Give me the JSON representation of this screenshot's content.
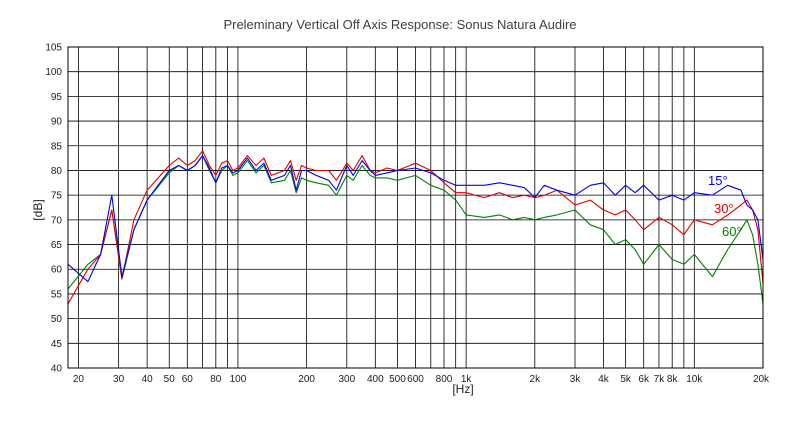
{
  "chart_data": {
    "type": "line",
    "title": "Preleminary Vertical Off Axis Response: Sonus Natura Audire",
    "xlabel": "[Hz]",
    "ylabel": "[dB]",
    "x_scale": "log",
    "xlim": [
      18,
      20000
    ],
    "ylim": [
      40,
      105
    ],
    "grid": true,
    "y_ticks": [
      40,
      45,
      50,
      55,
      60,
      65,
      70,
      75,
      80,
      85,
      90,
      95,
      100,
      105
    ],
    "x_tick_labels": [
      {
        "value": 20,
        "label": "20"
      },
      {
        "value": 30,
        "label": "30"
      },
      {
        "value": 40,
        "label": "40"
      },
      {
        "value": 50,
        "label": "50"
      },
      {
        "value": 60,
        "label": "60"
      },
      {
        "value": 80,
        "label": "80"
      },
      {
        "value": 100,
        "label": "100"
      },
      {
        "value": 200,
        "label": "200"
      },
      {
        "value": 300,
        "label": "300"
      },
      {
        "value": 400,
        "label": "400"
      },
      {
        "value": 500,
        "label": "500"
      },
      {
        "value": 600,
        "label": "600"
      },
      {
        "value": 800,
        "label": "800"
      },
      {
        "value": 1000,
        "label": "1k"
      },
      {
        "value": 2000,
        "label": "2k"
      },
      {
        "value": 3000,
        "label": "3k"
      },
      {
        "value": 4000,
        "label": "4k"
      },
      {
        "value": 5000,
        "label": "5k"
      },
      {
        "value": 6000,
        "label": "6k"
      },
      {
        "value": 7000,
        "label": "7k"
      },
      {
        "value": 8000,
        "label": "8k"
      },
      {
        "value": 10000,
        "label": "10k"
      },
      {
        "value": 20000,
        "label": "20k"
      }
    ],
    "series": [
      {
        "name": "15°",
        "color": "#0000ee",
        "points": [
          [
            18,
            61
          ],
          [
            22,
            57.5
          ],
          [
            25,
            63
          ],
          [
            28,
            75
          ],
          [
            31,
            58.5
          ],
          [
            35,
            68
          ],
          [
            40,
            74
          ],
          [
            50,
            80
          ],
          [
            55,
            81
          ],
          [
            60,
            80
          ],
          [
            65,
            81
          ],
          [
            70,
            83
          ],
          [
            75,
            80.5
          ],
          [
            80,
            77.5
          ],
          [
            85,
            80.5
          ],
          [
            90,
            81
          ],
          [
            95,
            79.5
          ],
          [
            100,
            80
          ],
          [
            110,
            82.5
          ],
          [
            120,
            80
          ],
          [
            130,
            81.5
          ],
          [
            140,
            78
          ],
          [
            160,
            79
          ],
          [
            170,
            81
          ],
          [
            180,
            76
          ],
          [
            190,
            80
          ],
          [
            200,
            80
          ],
          [
            220,
            79
          ],
          [
            250,
            78
          ],
          [
            270,
            76
          ],
          [
            300,
            81
          ],
          [
            320,
            79
          ],
          [
            350,
            82
          ],
          [
            380,
            80
          ],
          [
            400,
            79
          ],
          [
            450,
            79.5
          ],
          [
            500,
            80
          ],
          [
            600,
            80.5
          ],
          [
            700,
            79.5
          ],
          [
            800,
            78
          ],
          [
            900,
            77
          ],
          [
            1000,
            77
          ],
          [
            1200,
            77
          ],
          [
            1400,
            77.5
          ],
          [
            1600,
            77
          ],
          [
            1800,
            76.5
          ],
          [
            2000,
            74.5
          ],
          [
            2200,
            77
          ],
          [
            2500,
            76
          ],
          [
            3000,
            75
          ],
          [
            3500,
            77
          ],
          [
            4000,
            77.5
          ],
          [
            4500,
            75
          ],
          [
            5000,
            77
          ],
          [
            5500,
            75.5
          ],
          [
            6000,
            77
          ],
          [
            7000,
            74
          ],
          [
            8000,
            75
          ],
          [
            9000,
            74
          ],
          [
            10000,
            75.5
          ],
          [
            12000,
            75
          ],
          [
            14000,
            77
          ],
          [
            16000,
            76
          ],
          [
            17000,
            73
          ],
          [
            18000,
            72
          ],
          [
            19000,
            70
          ],
          [
            20000,
            62
          ]
        ]
      },
      {
        "name": "30°",
        "color": "#e00000",
        "points": [
          [
            18,
            53
          ],
          [
            22,
            60
          ],
          [
            25,
            63
          ],
          [
            28,
            72
          ],
          [
            31,
            58
          ],
          [
            35,
            70
          ],
          [
            40,
            76
          ],
          [
            50,
            81
          ],
          [
            55,
            82.5
          ],
          [
            60,
            81
          ],
          [
            65,
            82
          ],
          [
            70,
            84
          ],
          [
            75,
            81
          ],
          [
            80,
            79
          ],
          [
            85,
            81.5
          ],
          [
            90,
            82
          ],
          [
            95,
            80
          ],
          [
            100,
            80.5
          ],
          [
            110,
            83
          ],
          [
            120,
            81
          ],
          [
            130,
            82.5
          ],
          [
            140,
            79
          ],
          [
            160,
            80
          ],
          [
            170,
            82
          ],
          [
            180,
            78
          ],
          [
            190,
            81
          ],
          [
            200,
            80.5
          ],
          [
            220,
            80
          ],
          [
            250,
            80
          ],
          [
            270,
            78
          ],
          [
            300,
            81.5
          ],
          [
            320,
            80
          ],
          [
            350,
            83
          ],
          [
            380,
            80
          ],
          [
            400,
            79.5
          ],
          [
            450,
            80.5
          ],
          [
            500,
            80
          ],
          [
            600,
            81.5
          ],
          [
            700,
            80
          ],
          [
            800,
            77.5
          ],
          [
            900,
            75.5
          ],
          [
            1000,
            75.5
          ],
          [
            1200,
            74.5
          ],
          [
            1400,
            75.5
          ],
          [
            1600,
            74.5
          ],
          [
            1800,
            75
          ],
          [
            2000,
            74.5
          ],
          [
            2200,
            75
          ],
          [
            2500,
            76
          ],
          [
            3000,
            73
          ],
          [
            3500,
            74
          ],
          [
            4000,
            72
          ],
          [
            4500,
            71
          ],
          [
            5000,
            72
          ],
          [
            5500,
            70
          ],
          [
            6000,
            68
          ],
          [
            7000,
            70.5
          ],
          [
            8000,
            69
          ],
          [
            9000,
            67
          ],
          [
            10000,
            70
          ],
          [
            12000,
            69
          ],
          [
            14000,
            71
          ],
          [
            16000,
            73
          ],
          [
            17000,
            74
          ],
          [
            18000,
            72
          ],
          [
            19000,
            68
          ],
          [
            20000,
            57
          ]
        ]
      },
      {
        "name": "60°",
        "color": "#008000",
        "points": [
          [
            18,
            56
          ],
          [
            22,
            61
          ],
          [
            25,
            63
          ],
          [
            28,
            72
          ],
          [
            31,
            58
          ],
          [
            35,
            68
          ],
          [
            40,
            74
          ],
          [
            50,
            79.5
          ],
          [
            55,
            81
          ],
          [
            60,
            80
          ],
          [
            65,
            81
          ],
          [
            70,
            83
          ],
          [
            75,
            80
          ],
          [
            80,
            77.5
          ],
          [
            85,
            80
          ],
          [
            90,
            81
          ],
          [
            95,
            79
          ],
          [
            100,
            79.5
          ],
          [
            110,
            82
          ],
          [
            120,
            79.5
          ],
          [
            130,
            81
          ],
          [
            140,
            77.5
          ],
          [
            160,
            78
          ],
          [
            170,
            80
          ],
          [
            180,
            75.5
          ],
          [
            190,
            78.5
          ],
          [
            200,
            78
          ],
          [
            220,
            77.5
          ],
          [
            250,
            77
          ],
          [
            270,
            75
          ],
          [
            300,
            79
          ],
          [
            320,
            78
          ],
          [
            350,
            81
          ],
          [
            380,
            79
          ],
          [
            400,
            78.5
          ],
          [
            450,
            78.5
          ],
          [
            500,
            78
          ],
          [
            600,
            79
          ],
          [
            700,
            77
          ],
          [
            800,
            76
          ],
          [
            900,
            74
          ],
          [
            1000,
            71
          ],
          [
            1200,
            70.5
          ],
          [
            1400,
            71
          ],
          [
            1600,
            70
          ],
          [
            1800,
            70.5
          ],
          [
            2000,
            70
          ],
          [
            2200,
            70.5
          ],
          [
            2500,
            71
          ],
          [
            3000,
            72
          ],
          [
            3500,
            69
          ],
          [
            4000,
            68
          ],
          [
            4500,
            65
          ],
          [
            5000,
            66
          ],
          [
            5500,
            64
          ],
          [
            6000,
            61
          ],
          [
            7000,
            65
          ],
          [
            8000,
            62
          ],
          [
            9000,
            61
          ],
          [
            10000,
            63
          ],
          [
            12000,
            58.5
          ],
          [
            14000,
            64
          ],
          [
            16000,
            68
          ],
          [
            17000,
            70
          ],
          [
            18000,
            67
          ],
          [
            19000,
            61
          ],
          [
            20000,
            53
          ]
        ]
      }
    ],
    "legend": [
      {
        "label": "15°",
        "color": "#0000ee"
      },
      {
        "label": "30°",
        "color": "#e00000"
      },
      {
        "label": "60°",
        "color": "#008000"
      }
    ]
  }
}
